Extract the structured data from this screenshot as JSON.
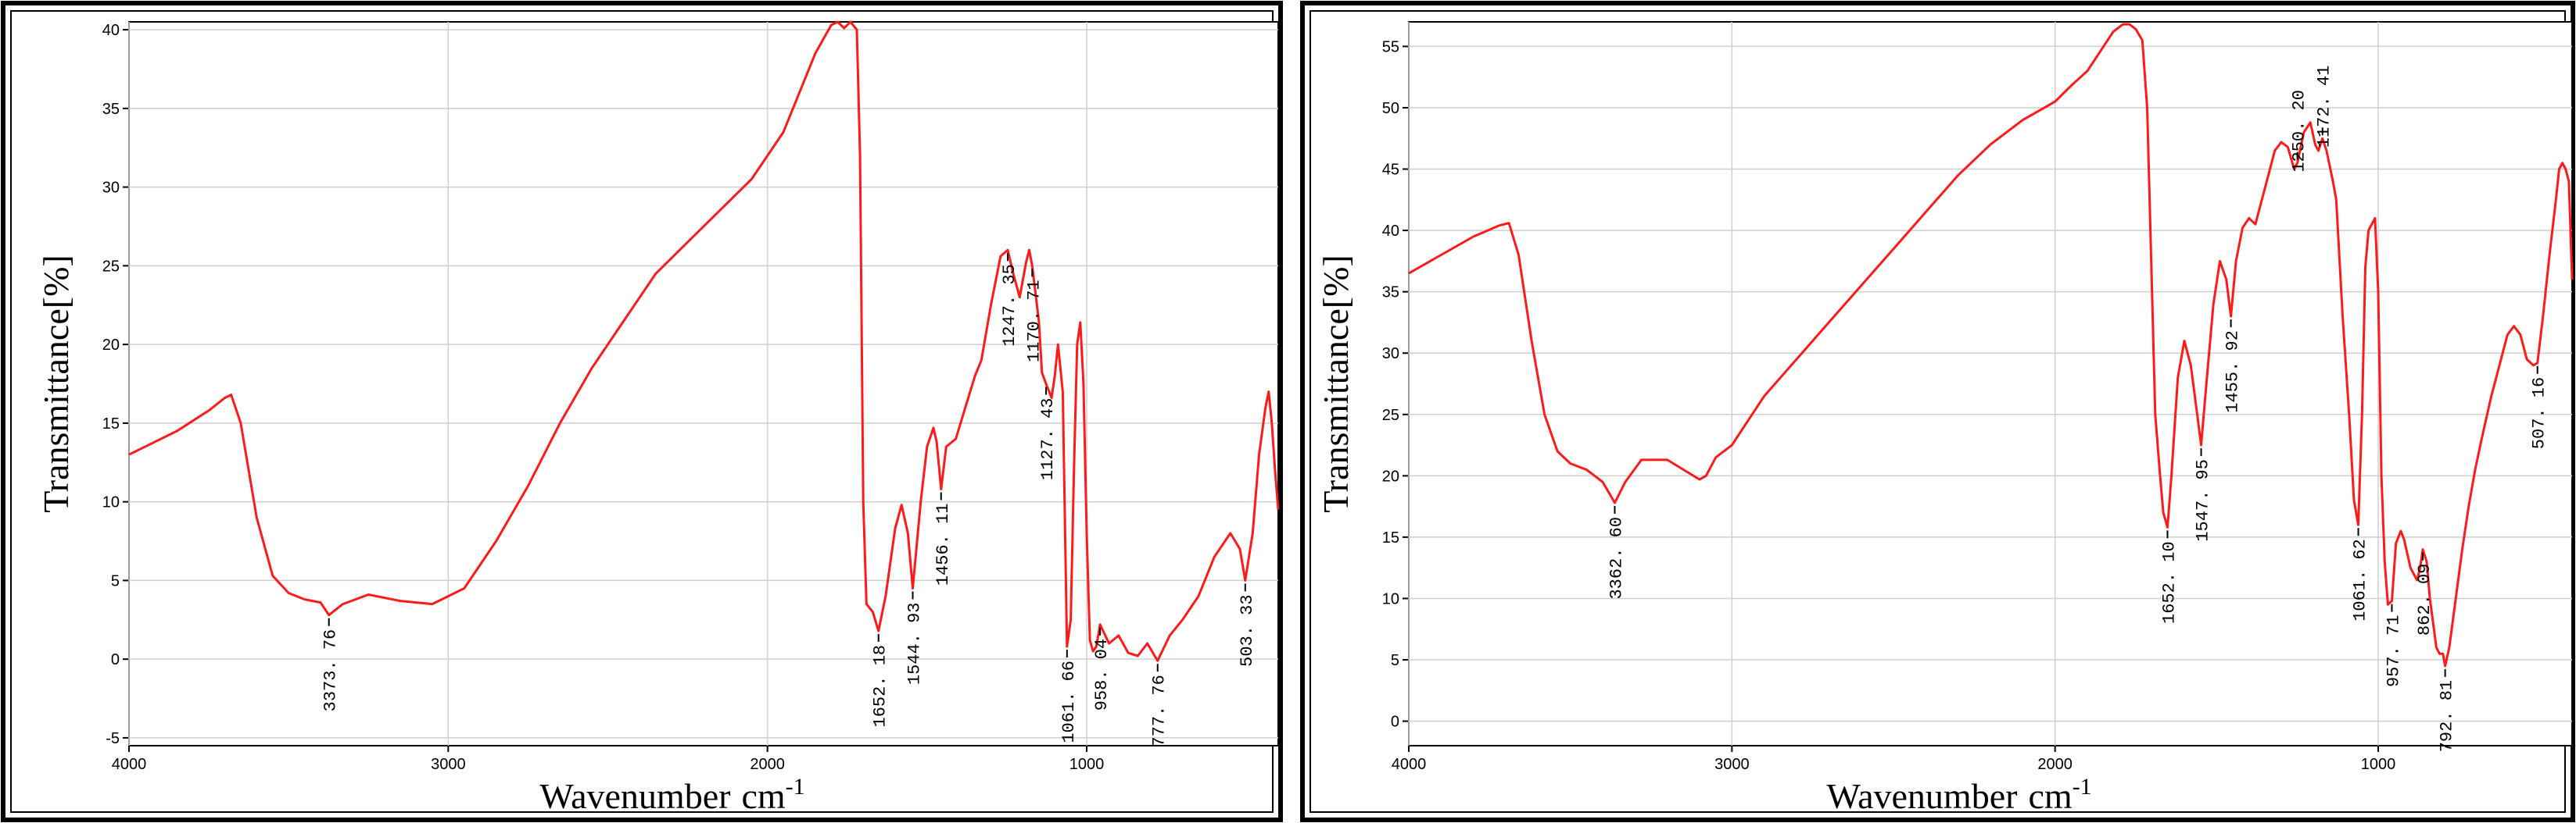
{
  "chart_data": [
    {
      "type": "line",
      "title": "",
      "xlabel": "Wavenumber",
      "xlabel_unit": "cm",
      "xlabel_unit_sup": "-1",
      "ylabel": "Transmittance[%]",
      "xlim": [
        4000,
        400
      ],
      "ylim": [
        -5.5,
        40.5
      ],
      "xreversed": true,
      "x_ticks": [
        4000,
        3000,
        2000,
        1000
      ],
      "y_ticks": [
        -5,
        0,
        5,
        10,
        15,
        20,
        25,
        30,
        35,
        40
      ],
      "grid": true,
      "legend": "none",
      "line_color": "#ff1a1a",
      "series": [
        {
          "x": [
            4000,
            3850,
            3750,
            3700,
            3680,
            3650,
            3600,
            3550,
            3500,
            3450,
            3400,
            3373.76,
            3330,
            3250,
            3150,
            3050,
            2950,
            2850,
            2750,
            2650,
            2550,
            2450,
            2350,
            2250,
            2150,
            2050,
            1950,
            1900,
            1850,
            1800,
            1780,
            1760,
            1740,
            1720,
            1710,
            1700,
            1690,
            1670,
            1652.18,
            1630,
            1600,
            1580,
            1560,
            1544.93,
            1520,
            1500,
            1480,
            1470,
            1456.11,
            1440,
            1410,
            1380,
            1350,
            1330,
            1300,
            1270,
            1247.35,
            1230,
            1210,
            1190,
            1180,
            1170.71,
            1150,
            1140,
            1127.43,
            1110,
            1100,
            1090,
            1075,
            1061.66,
            1050,
            1040,
            1030,
            1020,
            1010,
            1000,
            990,
            980,
            970,
            958.04,
            930,
            900,
            870,
            840,
            810,
            777.76,
            740,
            700,
            650,
            600,
            550,
            520,
            503.33,
            480,
            460,
            440,
            430,
            420,
            410,
            400
          ],
          "y": [
            13,
            14.5,
            15.8,
            16.6,
            16.8,
            15,
            9,
            5.3,
            4.2,
            3.8,
            3.6,
            2.8,
            3.5,
            4.1,
            3.7,
            3.5,
            4.5,
            7.5,
            11,
            15,
            18.5,
            21.5,
            24.5,
            26.5,
            28.5,
            30.5,
            33.5,
            36,
            38.5,
            40.3,
            40.5,
            40.1,
            40.5,
            40,
            32,
            10,
            3.5,
            3,
            1.8,
            4,
            8.3,
            9.8,
            8,
            4.5,
            10,
            13.5,
            14.7,
            13.8,
            10.8,
            13.5,
            14,
            16,
            18,
            19,
            22.5,
            25.6,
            26,
            24.5,
            23,
            25.2,
            26,
            25,
            21.5,
            18.2,
            17.5,
            16.6,
            18,
            20,
            17,
            0.8,
            2.5,
            12,
            20,
            21.4,
            17.5,
            8,
            1.2,
            0.5,
            0.8,
            2.2,
            1,
            1.5,
            0.4,
            0.2,
            1,
            -0.1,
            1.5,
            2.5,
            4,
            6.5,
            8,
            7,
            5,
            8,
            13,
            16,
            17,
            15,
            12,
            9.5
          ]
        }
      ],
      "peaks": [
        {
          "x": 3373.76,
          "label": "3373. 76"
        },
        {
          "x": 1652.18,
          "label": "1652. 18"
        },
        {
          "x": 1544.93,
          "label": "1544. 93"
        },
        {
          "x": 1456.11,
          "label": "1456. 11"
        },
        {
          "x": 1247.35,
          "label": "1247. 35"
        },
        {
          "x": 1170.71,
          "label": "1170. 71"
        },
        {
          "x": 1127.43,
          "label": "1127. 43"
        },
        {
          "x": 1061.66,
          "label": "1061. 66"
        },
        {
          "x": 958.04,
          "label": "958. 04"
        },
        {
          "x": 777.76,
          "label": "777. 76"
        },
        {
          "x": 503.33,
          "label": "503. 33"
        }
      ]
    },
    {
      "type": "line",
      "title": "",
      "xlabel": "Wavenumber",
      "xlabel_unit": "cm",
      "xlabel_unit_sup": "-1",
      "ylabel": "Transmittance[%]",
      "xlim": [
        4000,
        400
      ],
      "ylim": [
        -2,
        57
      ],
      "xreversed": true,
      "x_ticks": [
        4000,
        3000,
        2000,
        1000
      ],
      "y_ticks": [
        0,
        5,
        10,
        15,
        20,
        25,
        30,
        35,
        40,
        45,
        50,
        55
      ],
      "grid": true,
      "legend": "none",
      "line_color": "#ff1a1a",
      "series": [
        {
          "x": [
            4000,
            3900,
            3800,
            3720,
            3690,
            3660,
            3620,
            3580,
            3540,
            3500,
            3450,
            3400,
            3362.6,
            3330,
            3280,
            3200,
            3150,
            3100,
            3080,
            3050,
            3000,
            2950,
            2900,
            2800,
            2700,
            2600,
            2500,
            2400,
            2300,
            2200,
            2100,
            2000,
            1950,
            1900,
            1850,
            1820,
            1790,
            1770,
            1750,
            1730,
            1715,
            1700,
            1690,
            1675,
            1665,
            1652.1,
            1640,
            1620,
            1600,
            1580,
            1560,
            1547.95,
            1530,
            1510,
            1490,
            1470,
            1455.92,
            1440,
            1420,
            1400,
            1380,
            1360,
            1340,
            1320,
            1300,
            1280,
            1260,
            1250.2,
            1230,
            1210,
            1195,
            1185,
            1172.41,
            1160,
            1140,
            1130,
            1110,
            1090,
            1075,
            1061.62,
            1050,
            1040,
            1030,
            1020,
            1010,
            1000,
            990,
            980,
            970,
            957.71,
            945,
            930,
            920,
            900,
            880,
            870,
            862.09,
            850,
            840,
            820,
            810,
            800,
            792.81,
            780,
            760,
            740,
            720,
            700,
            680,
            650,
            620,
            600,
            580,
            560,
            540,
            520,
            507.16,
            490,
            470,
            450,
            440,
            430,
            420,
            410,
            400
          ],
          "y": [
            36.5,
            38,
            39.5,
            40.4,
            40.6,
            38,
            31,
            25,
            22,
            21,
            20.5,
            19.5,
            17.8,
            19.5,
            21.3,
            21.3,
            20.5,
            19.7,
            20,
            21.5,
            22.5,
            24.5,
            26.5,
            29.5,
            32.5,
            35.5,
            38.5,
            41.5,
            44.5,
            47,
            49,
            50.5,
            51.8,
            53,
            55,
            56.2,
            56.8,
            56.8,
            56.4,
            55.5,
            50,
            35,
            25,
            20,
            17,
            15.8,
            20,
            28,
            31,
            29,
            25,
            22.5,
            28,
            34,
            37.5,
            36,
            33,
            37.5,
            40.2,
            41,
            40.5,
            42.5,
            44.5,
            46.5,
            47.2,
            46.8,
            45,
            45.5,
            48,
            48.8,
            47,
            46.5,
            47.5,
            46.5,
            44,
            42.5,
            33,
            25,
            18,
            16,
            25,
            37,
            40,
            40.5,
            41,
            35,
            20,
            13,
            9.5,
            9.8,
            14.5,
            15.5,
            14.8,
            12.5,
            11.5,
            12.5,
            14,
            13,
            10,
            6,
            5.5,
            5.5,
            4.5,
            6,
            10,
            14,
            17.5,
            20.5,
            23,
            26.5,
            29.5,
            31.5,
            32.2,
            31.5,
            29.5,
            29,
            29.2,
            33,
            38,
            42.5,
            45,
            45.5,
            45,
            44,
            36
          ]
        }
      ],
      "peaks": [
        {
          "x": 3362.6,
          "label": "3362. 60"
        },
        {
          "x": 1652.1,
          "label": "1652. 10"
        },
        {
          "x": 1547.95,
          "label": "1547. 95"
        },
        {
          "x": 1455.92,
          "label": "1455. 92"
        },
        {
          "x": 1250.2,
          "label": "1250. 20"
        },
        {
          "x": 1172.41,
          "label": "1172. 41"
        },
        {
          "x": 1061.62,
          "label": "1061. 62"
        },
        {
          "x": 957.71,
          "label": "957. 71"
        },
        {
          "x": 862.09,
          "label": "862. 09"
        },
        {
          "x": 792.81,
          "label": "792. 81"
        },
        {
          "x": 507.16,
          "label": "507. 16"
        }
      ]
    }
  ]
}
